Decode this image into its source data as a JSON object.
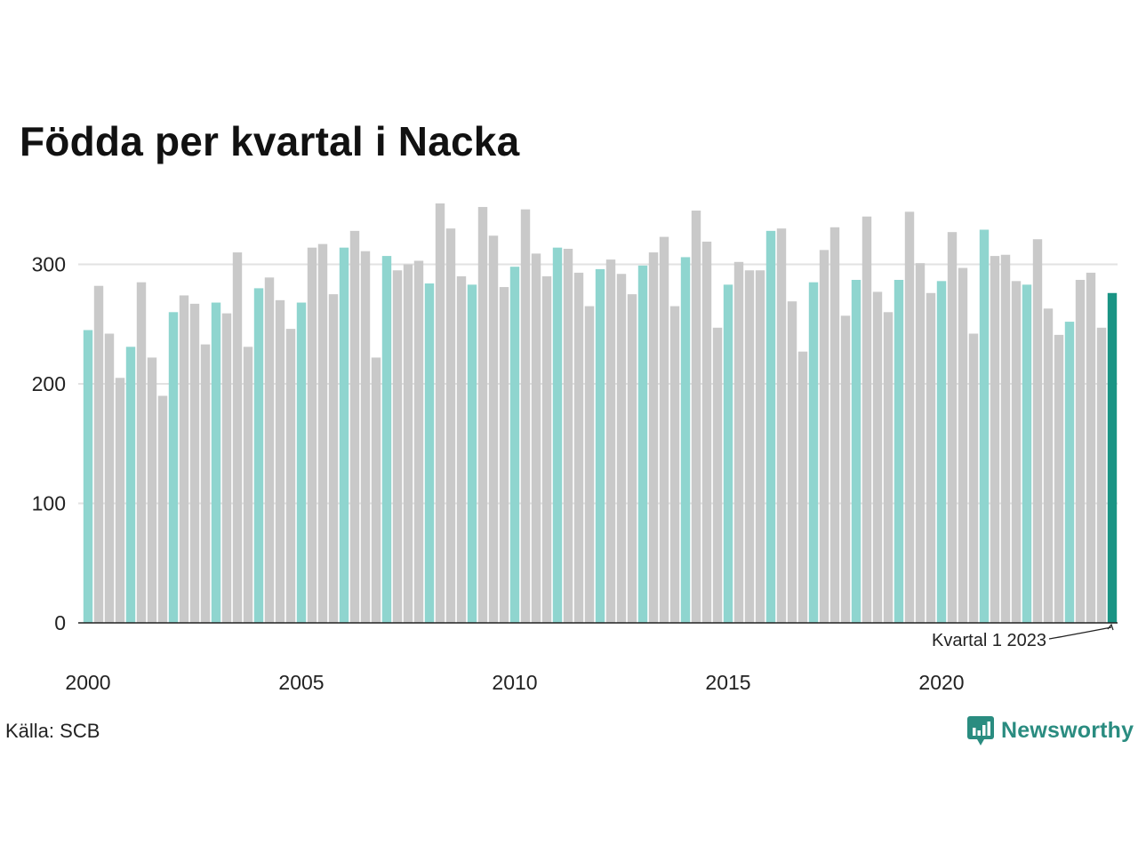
{
  "title": "Födda per kvartal i Nacka",
  "source": "Källa: SCB",
  "brand": "Newsworthy",
  "colors": {
    "q1": "#8fd5cf",
    "other": "#c9c9c9",
    "highlight": "#1a9484",
    "grid": "#e2e2e2",
    "axis": "#222222",
    "brand": "#2a8c80"
  },
  "annotation": {
    "text": "Kvartal 1 2023",
    "target_index": 96
  },
  "chart_data": {
    "type": "bar",
    "title": "Födda per kvartal i Nacka",
    "xlabel": "",
    "ylabel": "",
    "ylim": [
      0,
      350
    ],
    "yticks": [
      "0",
      "100",
      "200",
      "300"
    ],
    "xticks": [
      "2000",
      "2005",
      "2010",
      "2015",
      "2020"
    ],
    "grid": true,
    "legend": "none",
    "series": [
      {
        "values": [
          245,
          282,
          242,
          205,
          231,
          285,
          222,
          190,
          260,
          274,
          267,
          233,
          268,
          259,
          310,
          231,
          280,
          289,
          270,
          246,
          268,
          314,
          317,
          275,
          314,
          328,
          311,
          222,
          307,
          295,
          300,
          303,
          284,
          351,
          330,
          290,
          283,
          348,
          324,
          281,
          298,
          346,
          309,
          290,
          314,
          313,
          293,
          265,
          296,
          304,
          292,
          275,
          299,
          310,
          323,
          265,
          306,
          345,
          319,
          247,
          283,
          302,
          295,
          295,
          328,
          330,
          269,
          227,
          285,
          312,
          331,
          257,
          287,
          340,
          277,
          260,
          287,
          344,
          301,
          276,
          286,
          327,
          297,
          242,
          329,
          307,
          308,
          286,
          283,
          321,
          263,
          241,
          252,
          287,
          293,
          247,
          276
        ]
      }
    ]
  }
}
